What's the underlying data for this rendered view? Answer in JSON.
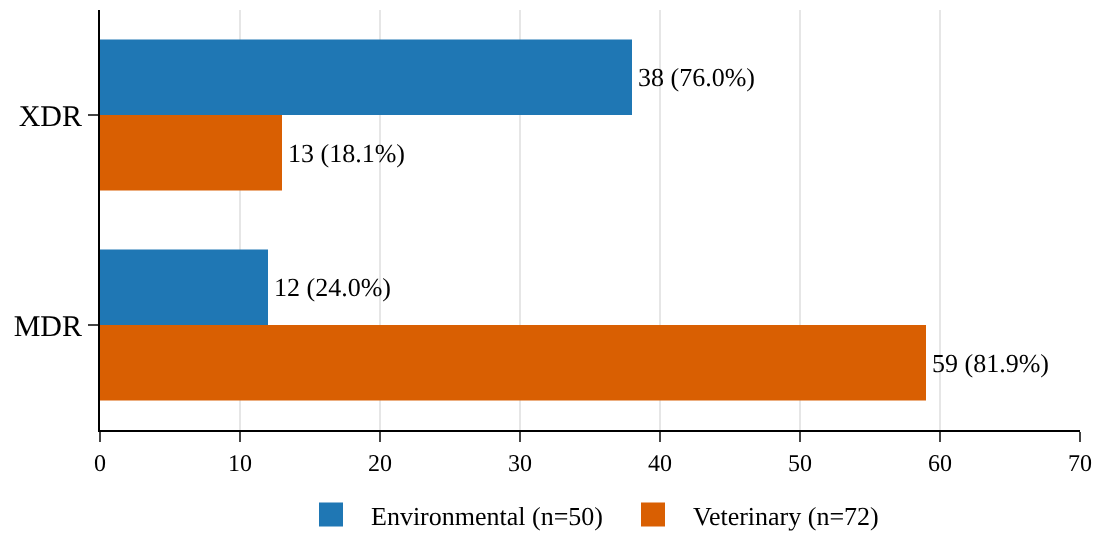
{
  "chart_data": {
    "type": "bar",
    "orientation": "horizontal",
    "categories": [
      "XDR",
      "MDR"
    ],
    "series": [
      {
        "name": "Environmental (n=50)",
        "color": "#1f77b4",
        "values": [
          38,
          12
        ],
        "value_labels": [
          "38 (76.0%)",
          "12 (24.0%)"
        ]
      },
      {
        "name": "Veterinary (n=72)",
        "color": "#d95f02",
        "values": [
          13,
          59
        ],
        "value_labels": [
          "13 (18.1%)",
          "59 (81.9%)"
        ]
      }
    ],
    "xlim": [
      0,
      70
    ],
    "xticks": [
      0,
      10,
      20,
      30,
      40,
      50,
      60,
      70
    ],
    "grid": "x",
    "legend": "bottom"
  }
}
